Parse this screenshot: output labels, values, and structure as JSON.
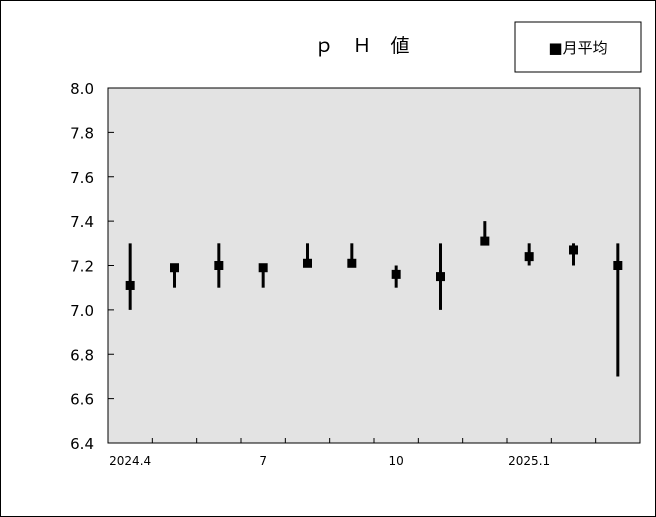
{
  "chart_data": {
    "type": "scatter",
    "title": "ｐ　Ｈ　値",
    "legend": {
      "label": "■月平均",
      "position": "top-right",
      "marker_color": "#000000"
    },
    "xlabel": "",
    "ylabel": "",
    "x_tick_labels": [
      "2024.4",
      "",
      "",
      "7",
      "",
      "",
      "10",
      "",
      "",
      "2025.1",
      "",
      ""
    ],
    "ylim": [
      6.4,
      8.0
    ],
    "y_ticks": [
      "6.4",
      "6.6",
      "6.8",
      "7.0",
      "7.2",
      "7.4",
      "7.6",
      "7.8",
      "8.0"
    ],
    "grid": false,
    "plot_background": "#e3e3e3",
    "mark_color": "#000000",
    "series": [
      {
        "name": "月平均",
        "points": [
          {
            "month": "2024.4",
            "mean": 7.11,
            "min": 7.0,
            "max": 7.3
          },
          {
            "month": "2024.5",
            "mean": 7.19,
            "min": 7.1,
            "max": 7.2
          },
          {
            "month": "2024.6",
            "mean": 7.2,
            "min": 7.1,
            "max": 7.3
          },
          {
            "month": "2024.7",
            "mean": 7.19,
            "min": 7.1,
            "max": 7.2
          },
          {
            "month": "2024.8",
            "mean": 7.21,
            "min": 7.2,
            "max": 7.3
          },
          {
            "month": "2024.9",
            "mean": 7.21,
            "min": 7.2,
            "max": 7.3
          },
          {
            "month": "2024.10",
            "mean": 7.16,
            "min": 7.1,
            "max": 7.2
          },
          {
            "month": "2024.11",
            "mean": 7.15,
            "min": 7.0,
            "max": 7.3
          },
          {
            "month": "2024.12",
            "mean": 7.31,
            "min": 7.3,
            "max": 7.4
          },
          {
            "month": "2025.1",
            "mean": 7.24,
            "min": 7.2,
            "max": 7.3
          },
          {
            "month": "2025.2",
            "mean": 7.27,
            "min": 7.2,
            "max": 7.3
          },
          {
            "month": "2025.3",
            "mean": 7.2,
            "min": 6.7,
            "max": 7.3
          }
        ]
      }
    ]
  }
}
